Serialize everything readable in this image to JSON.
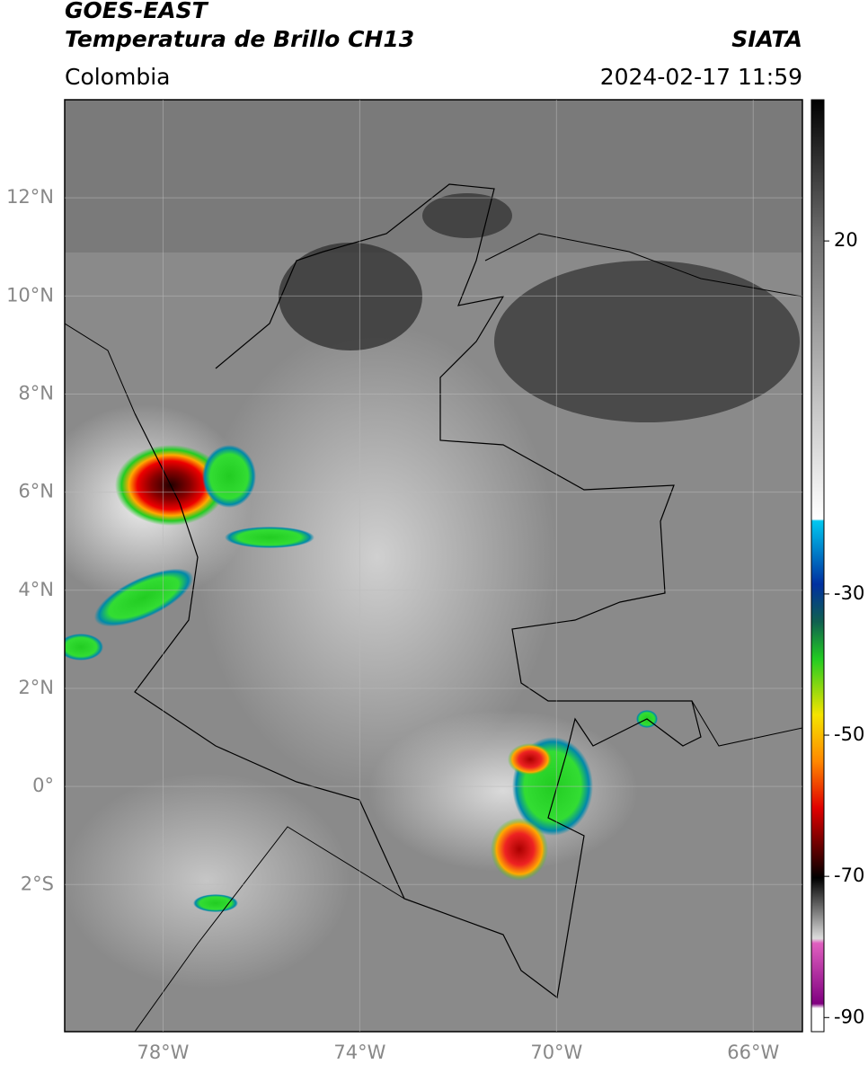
{
  "header": {
    "title": "GOES-EAST",
    "subtitle": "Temperatura de Brillo CH13",
    "source": "SIATA",
    "region": "Colombia",
    "datetime": "2024-02-17 11:59"
  },
  "map": {
    "lonlim": [
      -80,
      -65
    ],
    "latlim": [
      -5,
      14
    ],
    "lon_ticks": [
      {
        "value": -78,
        "label": "78°W"
      },
      {
        "value": -74,
        "label": "74°W"
      },
      {
        "value": -70,
        "label": "70°W"
      },
      {
        "value": -66,
        "label": "66°W"
      }
    ],
    "lat_ticks": [
      {
        "value": 12,
        "label": "12°N"
      },
      {
        "value": 10,
        "label": "10°N"
      },
      {
        "value": 8,
        "label": "8°N"
      },
      {
        "value": 6,
        "label": "6°N"
      },
      {
        "value": 4,
        "label": "4°N"
      },
      {
        "value": 2,
        "label": "2°N"
      },
      {
        "value": 0,
        "label": "0°"
      },
      {
        "value": -2,
        "label": "2°S"
      }
    ]
  },
  "colorbar": {
    "lim": [
      -92,
      40
    ],
    "ticks": [
      20,
      -30,
      -50,
      -70,
      -90
    ]
  }
}
